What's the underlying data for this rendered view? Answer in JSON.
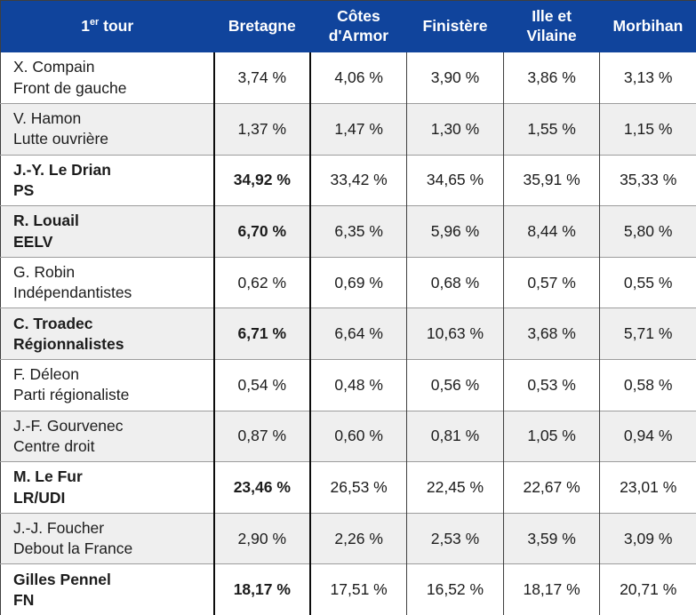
{
  "table": {
    "header": {
      "title_num": "1",
      "title_sup": "er",
      "title_rest": " tour",
      "columns": [
        "Bretagne",
        "Côtes d'Armor",
        "Finistère",
        "Ille et Vilaine",
        "Morbihan"
      ]
    },
    "rows": [
      {
        "candidate": "X. Compain",
        "party": "Front de gauche",
        "emphasized": false,
        "values": [
          "3,74 %",
          "4,06 %",
          "3,90 %",
          "3,86 %",
          "3,13 %"
        ]
      },
      {
        "candidate": "V. Hamon",
        "party": "Lutte ouvrière",
        "emphasized": false,
        "values": [
          "1,37 %",
          "1,47 %",
          "1,30 %",
          "1,55 %",
          "1,15 %"
        ]
      },
      {
        "candidate": "J.-Y. Le Drian",
        "party": "PS",
        "emphasized": true,
        "values": [
          "34,92 %",
          "33,42 %",
          "34,65 %",
          "35,91 %",
          "35,33 %"
        ]
      },
      {
        "candidate": "R. Louail",
        "party": "EELV",
        "emphasized": true,
        "values": [
          "6,70 %",
          "6,35 %",
          "5,96 %",
          "8,44 %",
          "5,80 %"
        ]
      },
      {
        "candidate": "G. Robin",
        "party": "Indépendantistes",
        "emphasized": false,
        "values": [
          "0,62 %",
          "0,69 %",
          "0,68 %",
          "0,57 %",
          "0,55 %"
        ]
      },
      {
        "candidate": "C. Troadec",
        "party": "Régionnalistes",
        "emphasized": true,
        "values": [
          "6,71 %",
          "6,64 %",
          "10,63 %",
          "3,68 %",
          "5,71 %"
        ]
      },
      {
        "candidate": "F. Déleon",
        "party": "Parti régionaliste",
        "emphasized": false,
        "values": [
          "0,54 %",
          "0,48 %",
          "0,56 %",
          "0,53 %",
          "0,58 %"
        ]
      },
      {
        "candidate": "J.-F. Gourvenec",
        "party": "Centre droit",
        "emphasized": false,
        "values": [
          "0,87 %",
          "0,60 %",
          "0,81 %",
          "1,05 %",
          "0,94 %"
        ]
      },
      {
        "candidate": "M. Le Fur",
        "party": "LR/UDI",
        "emphasized": true,
        "values": [
          "23,46 %",
          "26,53 %",
          "22,45 %",
          "22,67 %",
          "23,01 %"
        ]
      },
      {
        "candidate": "J.-J. Foucher",
        "party": "Debout la France",
        "emphasized": false,
        "values": [
          "2,90 %",
          "2,26 %",
          "2,53 %",
          "3,59 %",
          "3,09 %"
        ]
      },
      {
        "candidate": "Gilles Pennel",
        "party": "FN",
        "emphasized": true,
        "values": [
          "18,17 %",
          "17,51 %",
          "16,52 %",
          "18,17 %",
          "20,71 %"
        ]
      }
    ]
  },
  "colors": {
    "header_bg": "#10449c",
    "header_text": "#ffffff",
    "row_alt_bg": "#efefef",
    "row_line": "#9c9c9c",
    "column_line": "#3f3f3f",
    "highlight_border": "#0c0c0c",
    "text": "#1c1c1c"
  },
  "chart_data": {
    "type": "table",
    "title": "1er tour",
    "columns": [
      "1er tour",
      "Bretagne",
      "Côtes d'Armor",
      "Finistère",
      "Ille et Vilaine",
      "Morbihan"
    ],
    "unit": "%",
    "decimal_separator": ",",
    "rows": [
      {
        "candidate": "X. Compain",
        "party": "Front de gauche",
        "values": [
          3.74,
          4.06,
          3.9,
          3.86,
          3.13
        ]
      },
      {
        "candidate": "V. Hamon",
        "party": "Lutte ouvrière",
        "values": [
          1.37,
          1.47,
          1.3,
          1.55,
          1.15
        ]
      },
      {
        "candidate": "J.-Y. Le Drian",
        "party": "PS",
        "values": [
          34.92,
          33.42,
          34.65,
          35.91,
          35.33
        ]
      },
      {
        "candidate": "R. Louail",
        "party": "EELV",
        "values": [
          6.7,
          6.35,
          5.96,
          8.44,
          5.8
        ]
      },
      {
        "candidate": "G. Robin",
        "party": "Indépendantistes",
        "values": [
          0.62,
          0.69,
          0.68,
          0.57,
          0.55
        ]
      },
      {
        "candidate": "C. Troadec",
        "party": "Régionnalistes",
        "values": [
          6.71,
          6.64,
          10.63,
          3.68,
          5.71
        ]
      },
      {
        "candidate": "F. Déleon",
        "party": "Parti régionaliste",
        "values": [
          0.54,
          0.48,
          0.56,
          0.53,
          0.58
        ]
      },
      {
        "candidate": "J.-F. Gourvenec",
        "party": "Centre droit",
        "values": [
          0.87,
          0.6,
          0.81,
          1.05,
          0.94
        ]
      },
      {
        "candidate": "M. Le Fur",
        "party": "LR/UDI",
        "values": [
          23.46,
          26.53,
          22.45,
          22.67,
          23.01
        ]
      },
      {
        "candidate": "J.-J. Foucher",
        "party": "Debout la France",
        "values": [
          2.9,
          2.26,
          2.53,
          3.59,
          3.09
        ]
      },
      {
        "candidate": "Gilles Pennel",
        "party": "FN",
        "values": [
          18.17,
          17.51,
          16.52,
          18.17,
          20.71
        ]
      }
    ]
  }
}
